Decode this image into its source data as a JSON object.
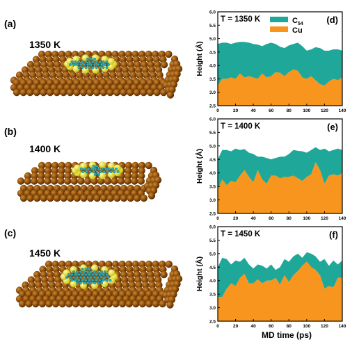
{
  "left_panels": [
    {
      "tag": "(a)",
      "temp": "1350 K"
    },
    {
      "tag": "(b)",
      "temp": "1400 K"
    },
    {
      "tag": "(c)",
      "temp": "1450 K"
    }
  ],
  "colors": {
    "cu_atom": "#8a4a06",
    "edge_atom": "#f2ea16",
    "c54_atom": "#22b0c0",
    "c54_fill": "#1fa89a",
    "cu_fill": "#f7951e"
  },
  "legend": {
    "c54": "C",
    "c54_sub": "54",
    "cu": "Cu"
  },
  "chart_data": [
    {
      "type": "area",
      "tag": "(d)",
      "annotation": "T = 1350 K",
      "xlabel": "",
      "ylabel": "Height (Å)",
      "xlim": [
        0,
        140
      ],
      "ylim": [
        2.5,
        6.0
      ],
      "xticks": [
        "0",
        "20",
        "40",
        "60",
        "80",
        "100",
        "120",
        "140"
      ],
      "yticks": [
        "2.5",
        "3.0",
        "3.5",
        "4.0",
        "4.5",
        "5.0",
        "5.5",
        "6.0"
      ],
      "grid": false,
      "x": [
        0,
        5,
        10,
        15,
        20,
        25,
        30,
        35,
        40,
        45,
        50,
        55,
        60,
        65,
        70,
        75,
        80,
        85,
        90,
        95,
        100,
        105,
        110,
        115,
        120,
        125,
        130,
        135,
        140
      ],
      "series": [
        {
          "name": "C",
          "values": [
            4.8,
            4.85,
            4.85,
            4.8,
            4.85,
            4.88,
            4.88,
            4.85,
            4.8,
            4.78,
            4.72,
            4.8,
            4.85,
            4.8,
            4.7,
            4.65,
            4.75,
            4.8,
            4.85,
            4.72,
            4.55,
            4.6,
            4.68,
            4.65,
            4.55,
            4.55,
            4.6,
            4.6,
            4.55
          ]
        },
        {
          "name": "Cu",
          "values": [
            3.25,
            3.5,
            3.5,
            3.55,
            3.5,
            3.7,
            3.55,
            3.6,
            3.55,
            3.5,
            3.7,
            3.55,
            3.6,
            3.75,
            3.72,
            3.6,
            3.75,
            3.85,
            3.8,
            3.55,
            3.5,
            3.6,
            3.45,
            3.3,
            3.25,
            3.4,
            3.5,
            3.45,
            3.55
          ]
        }
      ]
    },
    {
      "type": "area",
      "tag": "(e)",
      "annotation": "T = 1400 K",
      "xlabel": "",
      "ylabel": "Height (Å)",
      "xlim": [
        0,
        140
      ],
      "ylim": [
        2.5,
        6.0
      ],
      "xticks": [
        "0",
        "20",
        "40",
        "60",
        "80",
        "100",
        "120",
        "140"
      ],
      "yticks": [
        "2.5",
        "3.0",
        "3.5",
        "4.0",
        "4.5",
        "5.0",
        "5.5",
        "6.0"
      ],
      "grid": false,
      "x": [
        0,
        5,
        10,
        15,
        20,
        25,
        30,
        35,
        40,
        45,
        50,
        55,
        60,
        65,
        70,
        75,
        80,
        85,
        90,
        95,
        100,
        105,
        110,
        115,
        120,
        125,
        130,
        135,
        140
      ],
      "series": [
        {
          "name": "C",
          "values": [
            4.5,
            4.85,
            4.85,
            4.8,
            4.9,
            4.85,
            4.88,
            4.75,
            4.7,
            4.6,
            4.6,
            4.55,
            4.5,
            4.55,
            4.6,
            4.6,
            4.7,
            4.85,
            4.82,
            4.8,
            4.75,
            4.85,
            4.95,
            4.85,
            4.9,
            4.8,
            4.85,
            4.9,
            4.85
          ]
        },
        {
          "name": "Cu",
          "values": [
            3.4,
            3.75,
            3.55,
            3.7,
            3.65,
            3.9,
            4.1,
            3.85,
            3.65,
            4.1,
            3.75,
            3.6,
            3.9,
            3.9,
            3.8,
            3.85,
            3.85,
            3.9,
            3.8,
            3.7,
            3.85,
            3.95,
            4.4,
            4.1,
            3.6,
            3.9,
            3.95,
            3.9,
            4.0
          ]
        }
      ]
    },
    {
      "type": "area",
      "tag": "(f)",
      "annotation": "T = 1450 K",
      "xlabel": "MD time (ps)",
      "ylabel": "Height (Å)",
      "xlim": [
        0,
        140
      ],
      "ylim": [
        2.5,
        6.0
      ],
      "xticks": [
        "0",
        "20",
        "40",
        "60",
        "80",
        "100",
        "120",
        "140"
      ],
      "yticks": [
        "2.5",
        "3.0",
        "3.5",
        "4.0",
        "4.5",
        "5.0",
        "5.5",
        "6.0"
      ],
      "grid": false,
      "x": [
        0,
        5,
        10,
        15,
        20,
        25,
        30,
        35,
        40,
        45,
        50,
        55,
        60,
        65,
        70,
        75,
        80,
        85,
        90,
        95,
        100,
        105,
        110,
        115,
        120,
        125,
        130,
        135,
        140
      ],
      "series": [
        {
          "name": "C",
          "values": [
            4.5,
            4.85,
            4.8,
            4.6,
            4.75,
            4.7,
            4.85,
            4.6,
            4.45,
            4.6,
            4.55,
            4.45,
            4.6,
            4.4,
            4.5,
            4.8,
            4.7,
            4.9,
            5.0,
            4.85,
            5.05,
            5.0,
            4.9,
            4.7,
            4.8,
            4.55,
            4.75,
            4.6,
            4.75
          ]
        },
        {
          "name": "Cu",
          "values": [
            3.4,
            3.4,
            3.7,
            3.9,
            3.8,
            4.1,
            4.25,
            3.9,
            3.9,
            4.05,
            3.9,
            4.0,
            4.0,
            4.1,
            3.85,
            4.2,
            3.95,
            4.2,
            4.35,
            4.55,
            4.7,
            4.5,
            4.4,
            4.2,
            3.7,
            3.8,
            3.75,
            4.1,
            4.1
          ]
        }
      ]
    }
  ]
}
